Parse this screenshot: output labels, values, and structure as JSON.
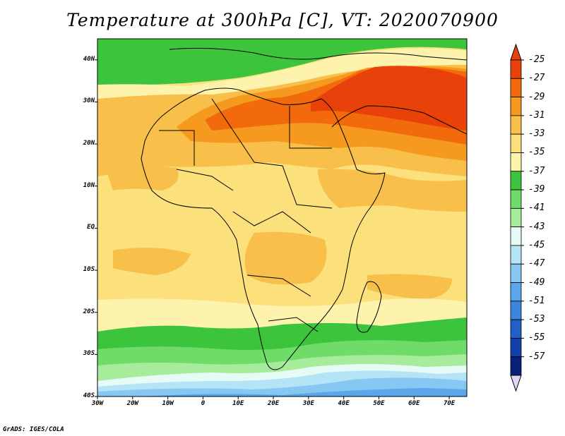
{
  "title": "Temperature at 300hPa [C], VT: 2020070900",
  "credit": "GrADS: IGES/COLA",
  "axes": {
    "lat_labels": [
      "40N",
      "30N",
      "20N",
      "10N",
      "EQ",
      "10S",
      "20S",
      "30S",
      "40S"
    ],
    "lat_values": [
      40,
      30,
      20,
      10,
      0,
      -10,
      -20,
      -30,
      -40
    ],
    "lon_labels": [
      "30W",
      "20W",
      "10W",
      "0",
      "10E",
      "20E",
      "30E",
      "40E",
      "50E",
      "60E",
      "70E"
    ],
    "lon_values": [
      -30,
      -20,
      -10,
      0,
      10,
      20,
      30,
      40,
      50,
      60,
      70
    ],
    "lon_range": [
      -30,
      75
    ],
    "lat_range": [
      -40,
      45
    ]
  },
  "colorbar": {
    "labels": [
      "-25",
      "-27",
      "-29",
      "-31",
      "-33",
      "-35",
      "-37",
      "-39",
      "-41",
      "-43",
      "-45",
      "-47",
      "-49",
      "-51",
      "-53",
      "-55",
      "-57"
    ],
    "colors": [
      "#e8420a",
      "#f26a0c",
      "#f59a1e",
      "#f8bf4a",
      "#fbe07c",
      "#fdf3ad",
      "#3cc43c",
      "#6fdc6a",
      "#a6ec9b",
      "#e6fbf6",
      "#b6e4f7",
      "#86c8f2",
      "#5aa6ea",
      "#3c86de",
      "#2060c8",
      "#1040a8",
      "#0a1f7a"
    ],
    "top_arrow_color": "#e8420a",
    "bottom_arrow_color": "#dcd8f5"
  }
}
